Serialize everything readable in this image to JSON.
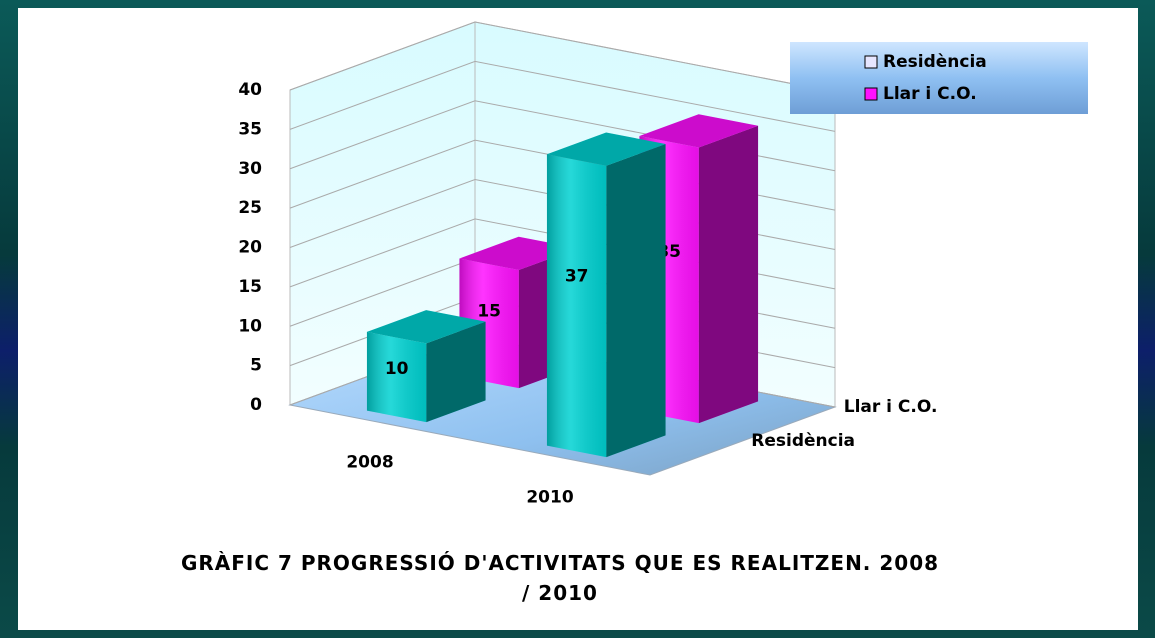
{
  "chart_data": {
    "type": "bar3d",
    "title": "GRÀFIC 7 PROGRESSIÓ D'ACTIVITATS QUE ES REALITZEN. 2008 / 2010",
    "categories": [
      "2008",
      "2010"
    ],
    "series": [
      {
        "name": "Residència",
        "color": "#00d2d2",
        "values": [
          10,
          37
        ]
      },
      {
        "name": "Llar i C.O.",
        "color": "#ff10ff",
        "values": [
          15,
          35
        ]
      }
    ],
    "ylim": [
      0,
      40
    ],
    "yticks": [
      0,
      5,
      10,
      15,
      20,
      25,
      30,
      35,
      40
    ],
    "grid": true,
    "legend": "top-right"
  }
}
